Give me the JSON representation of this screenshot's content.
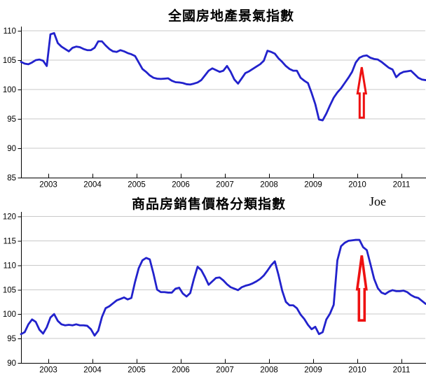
{
  "page": {
    "credit": "Joe",
    "background": "#ffffff"
  },
  "colors": {
    "line": "#2222cc",
    "grid": "#c9c9c9",
    "axis": "#000000",
    "tick_text": "#000000",
    "arrow": "#ee1111",
    "arrow_fill": "#ffffff"
  },
  "chart_data": [
    {
      "type": "line",
      "title": "全國房地產景氣指數",
      "x_start_month": "2002-05",
      "x_end_month": "2011-07",
      "x_interval": "monthly",
      "x_tick_years": [
        2003,
        2004,
        2005,
        2006,
        2007,
        2008,
        2009,
        2010,
        2011
      ],
      "y_ticks": [
        85,
        90,
        95,
        100,
        105,
        110
      ],
      "ylim": [
        85,
        110
      ],
      "grid": "horizontal",
      "legend": "none",
      "values": [
        104.7,
        104.4,
        104.3,
        104.6,
        105.0,
        105.1,
        104.9,
        104.0,
        109.4,
        109.6,
        107.9,
        107.3,
        106.9,
        106.5,
        107.1,
        107.3,
        107.2,
        106.9,
        106.7,
        106.7,
        107.1,
        108.2,
        108.2,
        107.5,
        106.9,
        106.5,
        106.4,
        106.7,
        106.5,
        106.2,
        106.0,
        105.7,
        104.6,
        103.5,
        103.0,
        102.4,
        102.0,
        101.85,
        101.8,
        101.85,
        101.9,
        101.5,
        101.25,
        101.2,
        101.1,
        100.9,
        100.85,
        101.0,
        101.2,
        101.6,
        102.4,
        103.2,
        103.6,
        103.3,
        103.0,
        103.2,
        104.0,
        103.0,
        101.7,
        101.0,
        101.9,
        102.8,
        103.1,
        103.5,
        103.9,
        104.3,
        104.9,
        106.6,
        106.4,
        106.1,
        105.3,
        104.7,
        104.0,
        103.5,
        103.2,
        103.2,
        102.0,
        101.5,
        101.1,
        99.4,
        97.5,
        94.9,
        94.75,
        95.9,
        97.3,
        98.6,
        99.5,
        100.2,
        101.1,
        102.0,
        103.0,
        104.6,
        105.4,
        105.7,
        105.8,
        105.4,
        105.2,
        105.1,
        104.7,
        104.2,
        103.7,
        103.4,
        102.1,
        102.7,
        103.0,
        103.1,
        103.2,
        102.6,
        102.0,
        101.7,
        101.6
      ],
      "annotation_arrow": {
        "x_year": 2010.1,
        "value_top": 103.8,
        "value_bottom": 95.2
      }
    },
    {
      "type": "line",
      "title": "商品房銷售價格分類指數",
      "x_start_month": "2002-05",
      "x_end_month": "2011-07",
      "x_interval": "monthly",
      "x_tick_years": [
        2003,
        2004,
        2005,
        2006,
        2007,
        2008,
        2009,
        2010,
        2011
      ],
      "y_ticks": [
        90,
        95,
        100,
        105,
        110,
        115,
        120
      ],
      "ylim": [
        90,
        120
      ],
      "grid": "horizontal",
      "legend": "none",
      "values": [
        95.9,
        96.3,
        97.9,
        98.9,
        98.4,
        96.8,
        96.0,
        97.3,
        99.3,
        100.0,
        98.6,
        97.9,
        97.7,
        97.8,
        97.7,
        97.9,
        97.7,
        97.7,
        97.6,
        96.9,
        95.6,
        96.6,
        99.4,
        101.2,
        101.6,
        102.2,
        102.8,
        103.1,
        103.4,
        103.0,
        103.3,
        106.6,
        109.4,
        111.0,
        111.5,
        111.2,
        108.3,
        105.0,
        104.5,
        104.5,
        104.4,
        104.4,
        105.2,
        105.4,
        104.2,
        103.6,
        104.3,
        107.2,
        109.7,
        109.0,
        107.6,
        106.0,
        106.7,
        107.4,
        107.5,
        106.9,
        106.1,
        105.5,
        105.2,
        104.9,
        105.5,
        105.8,
        106.0,
        106.3,
        106.7,
        107.2,
        107.9,
        108.9,
        110.0,
        110.8,
        108.0,
        104.8,
        102.5,
        101.8,
        101.8,
        101.2,
        99.9,
        99.0,
        97.8,
        96.9,
        97.4,
        95.9,
        96.3,
        98.9,
        100.1,
        101.9,
        111.0,
        113.9,
        114.6,
        115.0,
        115.1,
        115.2,
        115.2,
        113.7,
        113.1,
        110.2,
        107.2,
        105.3,
        104.4,
        104.1,
        104.6,
        104.9,
        104.7,
        104.7,
        104.8,
        104.5,
        103.9,
        103.5,
        103.3,
        102.7,
        102.1
      ],
      "annotation_arrow": {
        "x_year": 2010.1,
        "value_top": 112.0,
        "value_bottom": 98.7
      }
    }
  ]
}
